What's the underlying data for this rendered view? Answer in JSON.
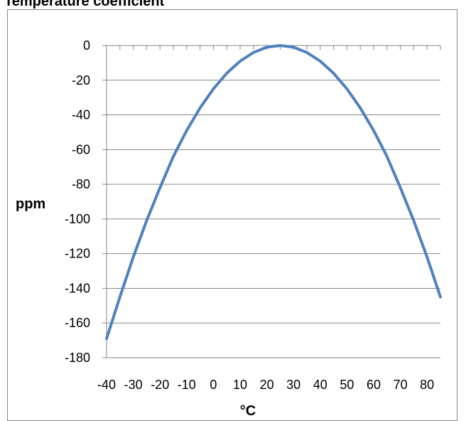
{
  "chart_data": {
    "type": "line",
    "title": "Temperature coefficient",
    "xlabel": "°C",
    "ylabel": "ppm",
    "xlim": [
      -40,
      85
    ],
    "ylim": [
      -180,
      0
    ],
    "x_ticks": [
      -40,
      -30,
      -20,
      -10,
      0,
      10,
      20,
      30,
      40,
      50,
      60,
      70,
      80
    ],
    "y_ticks": [
      0,
      -20,
      -40,
      -60,
      -80,
      -100,
      -120,
      -140,
      -160,
      -180
    ],
    "grid": true,
    "legend": "none",
    "series": [
      {
        "color": "#4f81bd",
        "x": [
          -40,
          -35,
          -30,
          -25,
          -20,
          -15,
          -10,
          -5,
          0,
          5,
          10,
          15,
          20,
          25,
          30,
          35,
          40,
          45,
          50,
          55,
          60,
          65,
          70,
          75,
          80,
          85
        ],
        "y": [
          -169,
          -145,
          -122,
          -101,
          -82,
          -64,
          -49,
          -36,
          -25,
          -16,
          -9,
          -4,
          -1,
          0,
          -1,
          -4,
          -9,
          -16,
          -25,
          -36,
          -49,
          -64,
          -82,
          -101,
          -122,
          -145
        ]
      }
    ]
  }
}
